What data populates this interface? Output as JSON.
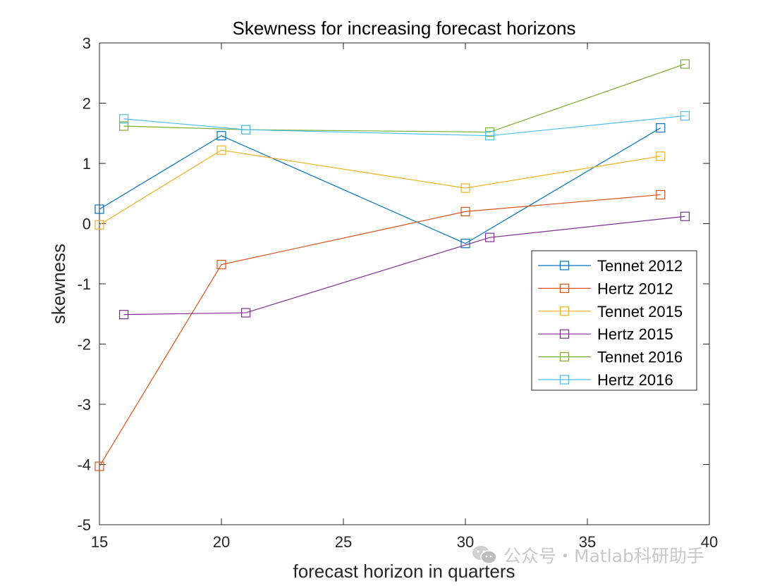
{
  "chart_data": {
    "type": "line",
    "title": "Skewness for increasing forecast horizons",
    "xlabel": "forecast horizon in quarters",
    "ylabel": "skewness",
    "xlim": [
      15,
      40
    ],
    "ylim": [
      -5,
      3
    ],
    "xticks": [
      15,
      20,
      25,
      30,
      35,
      40
    ],
    "yticks": [
      -5,
      -4,
      -3,
      -2,
      -1,
      0,
      1,
      2,
      3
    ],
    "grid": false,
    "legend_position": "right",
    "marker": "square",
    "series": [
      {
        "name": "Tennet 2012",
        "color": "#0072BD",
        "x": [
          15,
          20,
          30,
          38
        ],
        "y": [
          0.24,
          1.46,
          -0.33,
          1.59
        ]
      },
      {
        "name": "Hertz 2012",
        "color": "#D95319",
        "x": [
          15,
          20,
          30,
          38
        ],
        "y": [
          -4.03,
          -0.68,
          0.2,
          0.48
        ]
      },
      {
        "name": "Tennet 2015",
        "color": "#EDB120",
        "x": [
          15,
          20,
          30,
          38
        ],
        "y": [
          -0.02,
          1.22,
          0.59,
          1.12
        ]
      },
      {
        "name": "Hertz 2015",
        "color": "#7E2F8E",
        "x": [
          16,
          21,
          31,
          39
        ],
        "y": [
          -1.51,
          -1.48,
          -0.23,
          0.12
        ]
      },
      {
        "name": "Tennet 2016",
        "color": "#77AC30",
        "x": [
          16,
          21,
          31,
          39
        ],
        "y": [
          1.62,
          1.56,
          1.52,
          2.65
        ]
      },
      {
        "name": "Hertz 2016",
        "color": "#4DBEEE",
        "x": [
          16,
          21,
          31,
          39
        ],
        "y": [
          1.74,
          1.56,
          1.46,
          1.79
        ]
      }
    ]
  },
  "watermark": {
    "icon": "wechat-icon",
    "text": "公众号・Matlab科研助手"
  }
}
